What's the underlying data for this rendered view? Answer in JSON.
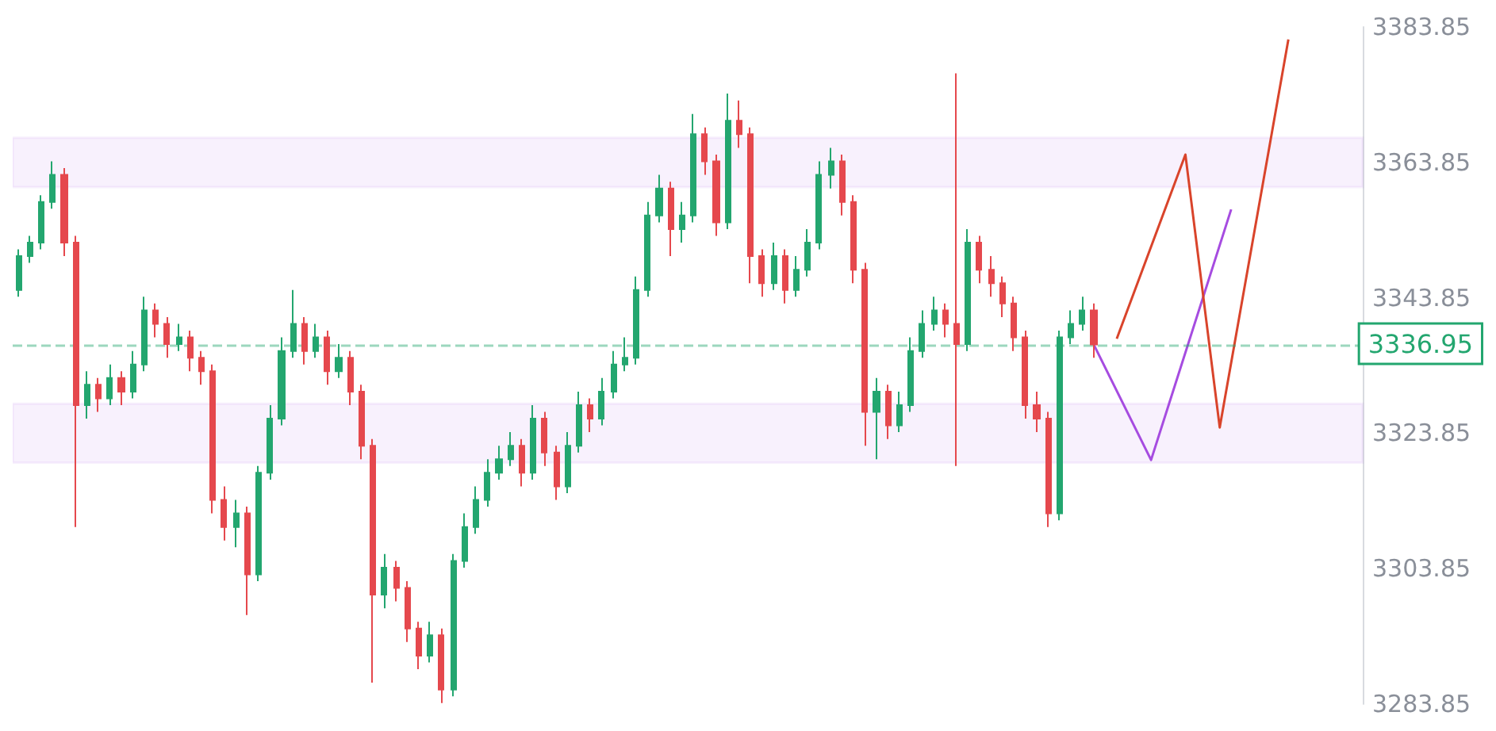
{
  "chart_data": {
    "type": "candlestick",
    "categories": [
      null,
      null,
      null,
      null,
      null,
      null,
      null,
      null,
      null,
      null,
      null,
      null,
      null,
      null,
      null,
      null,
      null,
      null,
      null,
      null,
      null,
      null,
      null,
      null,
      null,
      null,
      null,
      null,
      null,
      null,
      null,
      null,
      null,
      null,
      null,
      null,
      null,
      null,
      null,
      null,
      null,
      null,
      null,
      null,
      null,
      null,
      null,
      null,
      null,
      null,
      null,
      null,
      null,
      null,
      null,
      null,
      null,
      null,
      null,
      null,
      null,
      null,
      null,
      null,
      null,
      null,
      null,
      null,
      null,
      null,
      null,
      null,
      null,
      null,
      null,
      null,
      null,
      null,
      null,
      null,
      null,
      null,
      null,
      null,
      null,
      null,
      null,
      null,
      null,
      null,
      null,
      null,
      null,
      null,
      null,
      null,
      null,
      null,
      null,
      null,
      null,
      null,
      null,
      null,
      null,
      null,
      null,
      null,
      null,
      null,
      null,
      null,
      null,
      null,
      null,
      null,
      null,
      null
    ],
    "ohlc": [
      [
        3345,
        3351,
        3344,
        3350
      ],
      [
        3350,
        3353,
        3349,
        3352
      ],
      [
        3352,
        3359,
        3351,
        3358
      ],
      [
        3358,
        3364,
        3357,
        3362
      ],
      [
        3362,
        3363,
        3350,
        3352
      ],
      [
        3352,
        3353,
        3310,
        3328
      ],
      [
        3328,
        3333,
        3326,
        3331
      ],
      [
        3331,
        3332,
        3327,
        3329
      ],
      [
        3329,
        3334,
        3328,
        3332
      ],
      [
        3332,
        3333,
        3328,
        3330
      ],
      [
        3330,
        3336,
        3329,
        3334
      ],
      [
        3334,
        3344,
        3333,
        3342
      ],
      [
        3342,
        3343,
        3338,
        3340
      ],
      [
        3340,
        3341,
        3335,
        3337
      ],
      [
        3337,
        3340,
        3336,
        3338
      ],
      [
        3338,
        3339,
        3333,
        3335
      ],
      [
        3335,
        3336,
        3331,
        3333
      ],
      [
        3333,
        3334,
        3312,
        3314
      ],
      [
        3314,
        3316,
        3308,
        3310
      ],
      [
        3310,
        3314,
        3307,
        3312
      ],
      [
        3312,
        3313,
        3297,
        3303
      ],
      [
        3303,
        3319,
        3302,
        3318
      ],
      [
        3318,
        3328,
        3317,
        3326
      ],
      [
        3326,
        3338,
        3325,
        3336
      ],
      [
        3336,
        3345,
        3335,
        3340
      ],
      [
        3340,
        3341,
        3334,
        3336
      ],
      [
        3336,
        3340,
        3335,
        3338
      ],
      [
        3338,
        3339,
        3331,
        3333
      ],
      [
        3333,
        3337,
        3332,
        3335
      ],
      [
        3335,
        3336,
        3328,
        3330
      ],
      [
        3330,
        3331,
        3320,
        3322
      ],
      [
        3322,
        3323,
        3287,
        3300
      ],
      [
        3300,
        3306,
        3298,
        3304
      ],
      [
        3304,
        3305,
        3299,
        3301
      ],
      [
        3301,
        3302,
        3293,
        3295
      ],
      [
        3295,
        3296,
        3289,
        3291
      ],
      [
        3291,
        3296,
        3290,
        3294
      ],
      [
        3294,
        3295,
        3284,
        3286
      ],
      [
        3286,
        3306,
        3285,
        3305
      ],
      [
        3305,
        3312,
        3304,
        3310
      ],
      [
        3310,
        3316,
        3309,
        3314
      ],
      [
        3314,
        3320,
        3313,
        3318
      ],
      [
        3318,
        3322,
        3317,
        3320
      ],
      [
        3320,
        3324,
        3319,
        3322
      ],
      [
        3322,
        3323,
        3316,
        3318
      ],
      [
        3318,
        3328,
        3317,
        3326
      ],
      [
        3326,
        3327,
        3319,
        3321
      ],
      [
        3321,
        3322,
        3314,
        3316
      ],
      [
        3316,
        3324,
        3315,
        3322
      ],
      [
        3322,
        3330,
        3321,
        3328
      ],
      [
        3328,
        3329,
        3324,
        3326
      ],
      [
        3326,
        3332,
        3325,
        3330
      ],
      [
        3330,
        3336,
        3329,
        3334
      ],
      [
        3334,
        3338,
        3333,
        3335
      ],
      [
        3335,
        3347,
        3334,
        3345
      ],
      [
        3345,
        3358,
        3344,
        3356
      ],
      [
        3356,
        3362,
        3355,
        3360
      ],
      [
        3360,
        3361,
        3350,
        3354
      ],
      [
        3354,
        3358,
        3352,
        3356
      ],
      [
        3356,
        3371,
        3355,
        3368
      ],
      [
        3368,
        3369,
        3362,
        3364
      ],
      [
        3364,
        3365,
        3353,
        3355
      ],
      [
        3355,
        3374,
        3354,
        3370
      ],
      [
        3370,
        3373,
        3366,
        3368
      ],
      [
        3368,
        3369,
        3346,
        3350
      ],
      [
        3350,
        3351,
        3344,
        3346
      ],
      [
        3346,
        3352,
        3345,
        3350
      ],
      [
        3350,
        3351,
        3343,
        3345
      ],
      [
        3345,
        3350,
        3344,
        3348
      ],
      [
        3348,
        3354,
        3347,
        3352
      ],
      [
        3352,
        3364,
        3351,
        3362
      ],
      [
        3362,
        3366,
        3360,
        3364
      ],
      [
        3364,
        3365,
        3356,
        3358
      ],
      [
        3358,
        3359,
        3346,
        3348
      ],
      [
        3348,
        3349,
        3322,
        3327
      ],
      [
        3327,
        3332,
        3320,
        3330
      ],
      [
        3330,
        3331,
        3323,
        3325
      ],
      [
        3325,
        3330,
        3324,
        3328
      ],
      [
        3328,
        3338,
        3327,
        3336
      ],
      [
        3336,
        3342,
        3335,
        3340
      ],
      [
        3340,
        3344,
        3339,
        3342
      ],
      [
        3342,
        3343,
        3338,
        3340
      ],
      [
        3340,
        3377,
        3319,
        3337
      ],
      [
        3337,
        3354,
        3336,
        3352
      ],
      [
        3352,
        3353,
        3346,
        3348
      ],
      [
        3348,
        3350,
        3344,
        3346
      ],
      [
        3346,
        3347,
        3341,
        3343
      ],
      [
        3343,
        3344,
        3336,
        3338
      ],
      [
        3338,
        3339,
        3326,
        3328
      ],
      [
        3328,
        3330,
        3324,
        3326
      ],
      [
        3326,
        3327,
        3310,
        3312
      ],
      [
        3312,
        3339,
        3311,
        3338
      ],
      [
        3338,
        3342,
        3337,
        3340
      ],
      [
        3340,
        3344,
        3339,
        3342
      ],
      [
        3342,
        3343,
        3335,
        3336.95
      ],
      null,
      null,
      null,
      null,
      null,
      null,
      null,
      null,
      null,
      null,
      null,
      null,
      null,
      null,
      null,
      null,
      null,
      null,
      null,
      null,
      null,
      null,
      null
    ],
    "series": [
      {
        "type": "line",
        "color": "#a64ce0",
        "values": [
          null,
          null,
          null,
          null,
          null,
          null,
          null,
          null,
          null,
          null,
          null,
          null,
          null,
          null,
          null,
          null,
          null,
          null,
          null,
          null,
          null,
          null,
          null,
          null,
          null,
          null,
          null,
          null,
          null,
          null,
          null,
          null,
          null,
          null,
          null,
          null,
          null,
          null,
          null,
          null,
          null,
          null,
          null,
          null,
          null,
          null,
          null,
          null,
          null,
          null,
          null,
          null,
          null,
          null,
          null,
          null,
          null,
          null,
          null,
          null,
          null,
          null,
          null,
          null,
          null,
          null,
          null,
          null,
          null,
          null,
          null,
          null,
          null,
          null,
          null,
          null,
          null,
          null,
          null,
          null,
          null,
          null,
          null,
          null,
          null,
          null,
          null,
          null,
          null,
          null,
          null,
          null,
          null,
          null,
          3336.9,
          null,
          null,
          null,
          null,
          3319.9,
          null,
          null,
          null,
          null,
          null,
          null,
          3356.9,
          null,
          null,
          null,
          null,
          null,
          null,
          null,
          null,
          null,
          null,
          null
        ]
      },
      {
        "type": "line",
        "color": "#d9442b",
        "values": [
          null,
          null,
          null,
          null,
          null,
          null,
          null,
          null,
          null,
          null,
          null,
          null,
          null,
          null,
          null,
          null,
          null,
          null,
          null,
          null,
          null,
          null,
          null,
          null,
          null,
          null,
          null,
          null,
          null,
          null,
          null,
          null,
          null,
          null,
          null,
          null,
          null,
          null,
          null,
          null,
          null,
          null,
          null,
          null,
          null,
          null,
          null,
          null,
          null,
          null,
          null,
          null,
          null,
          null,
          null,
          null,
          null,
          null,
          null,
          null,
          null,
          null,
          null,
          null,
          null,
          null,
          null,
          null,
          null,
          null,
          null,
          null,
          null,
          null,
          null,
          null,
          null,
          null,
          null,
          null,
          null,
          null,
          null,
          null,
          null,
          null,
          null,
          null,
          null,
          null,
          null,
          null,
          null,
          null,
          null,
          null,
          3337.8,
          null,
          null,
          null,
          null,
          null,
          3365,
          null,
          null,
          3324.7,
          null,
          null,
          null,
          null,
          null,
          3382,
          null,
          null,
          null,
          null,
          null,
          null
        ]
      }
    ],
    "ylim": [
      3283.85,
      3383.85
    ],
    "yticks": [
      3283.85,
      3303.85,
      3323.85,
      3343.85,
      3363.85,
      3383.85
    ],
    "tick_labels": "y",
    "ref_lines": [
      {
        "axis": "y",
        "value": 3336.95,
        "label": "3336.95",
        "color": "#23a66f",
        "line_style": "dashed"
      }
    ],
    "bands": [
      {
        "axis": "y",
        "from": 3360.2,
        "to": 3367.5,
        "color": "#a64ce0"
      },
      {
        "axis": "y",
        "from": 3319.5,
        "to": 3328.2,
        "color": "#a64ce0"
      }
    ]
  }
}
